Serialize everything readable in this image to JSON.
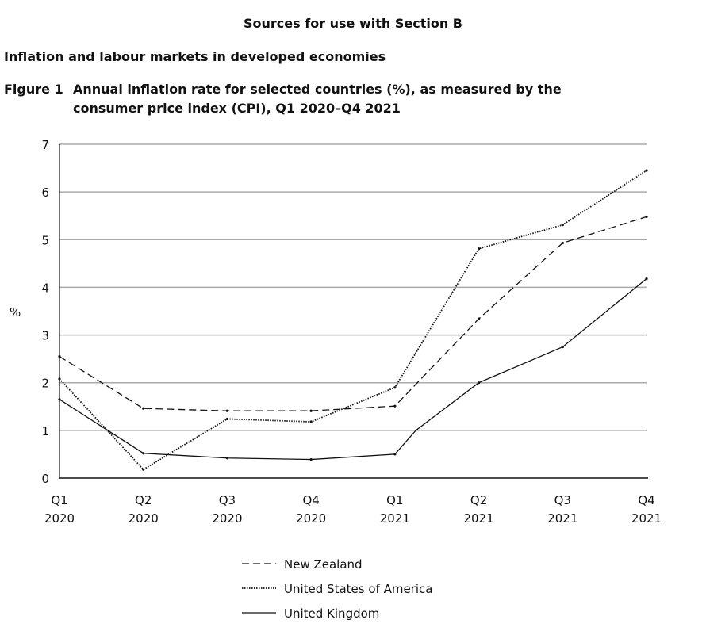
{
  "header": {
    "section": "Sources for use with Section B",
    "subtitle": "Inflation and labour markets in developed economies",
    "figure_label": "Figure 1",
    "figure_title_line1": "Annual inflation rate for selected countries (%), as measured by the",
    "figure_title_line2": "consumer price index (CPI), Q1 2020–Q4 2021"
  },
  "chart_data": {
    "type": "line",
    "title": "Annual inflation rate for selected countries (%), as measured by the consumer price index (CPI), Q1 2020–Q4 2021",
    "xlabel": "",
    "ylabel": "%",
    "ylim": [
      0,
      7
    ],
    "yticks": [
      "0",
      "1",
      "2",
      "3",
      "4",
      "5",
      "6",
      "7"
    ],
    "categories": [
      {
        "q": "Q1",
        "y": "2020"
      },
      {
        "q": "Q2",
        "y": "2020"
      },
      {
        "q": "Q3",
        "y": "2020"
      },
      {
        "q": "Q4",
        "y": "2020"
      },
      {
        "q": "Q1",
        "y": "2021"
      },
      {
        "q": "Q2",
        "y": "2021"
      },
      {
        "q": "Q3",
        "y": "2021"
      },
      {
        "q": "Q4",
        "y": "2021"
      }
    ],
    "grid": true,
    "legend_position": "bottom",
    "series": [
      {
        "name": "New Zealand",
        "style": "dashed",
        "values": [
          2.55,
          1.46,
          1.41,
          1.41,
          1.51,
          3.34,
          4.93,
          5.48
        ]
      },
      {
        "name": "United States of America",
        "style": "dotted",
        "values": [
          2.08,
          0.18,
          1.24,
          1.18,
          1.9,
          4.81,
          5.31,
          6.45
        ]
      },
      {
        "name": "United Kingdom",
        "style": "solid",
        "values": [
          1.65,
          0.52,
          0.42,
          0.39,
          0.5,
          2.0,
          2.75,
          4.18
        ],
        "extra_points": [
          {
            "x": 4.25,
            "value": 1.0
          }
        ]
      }
    ]
  }
}
